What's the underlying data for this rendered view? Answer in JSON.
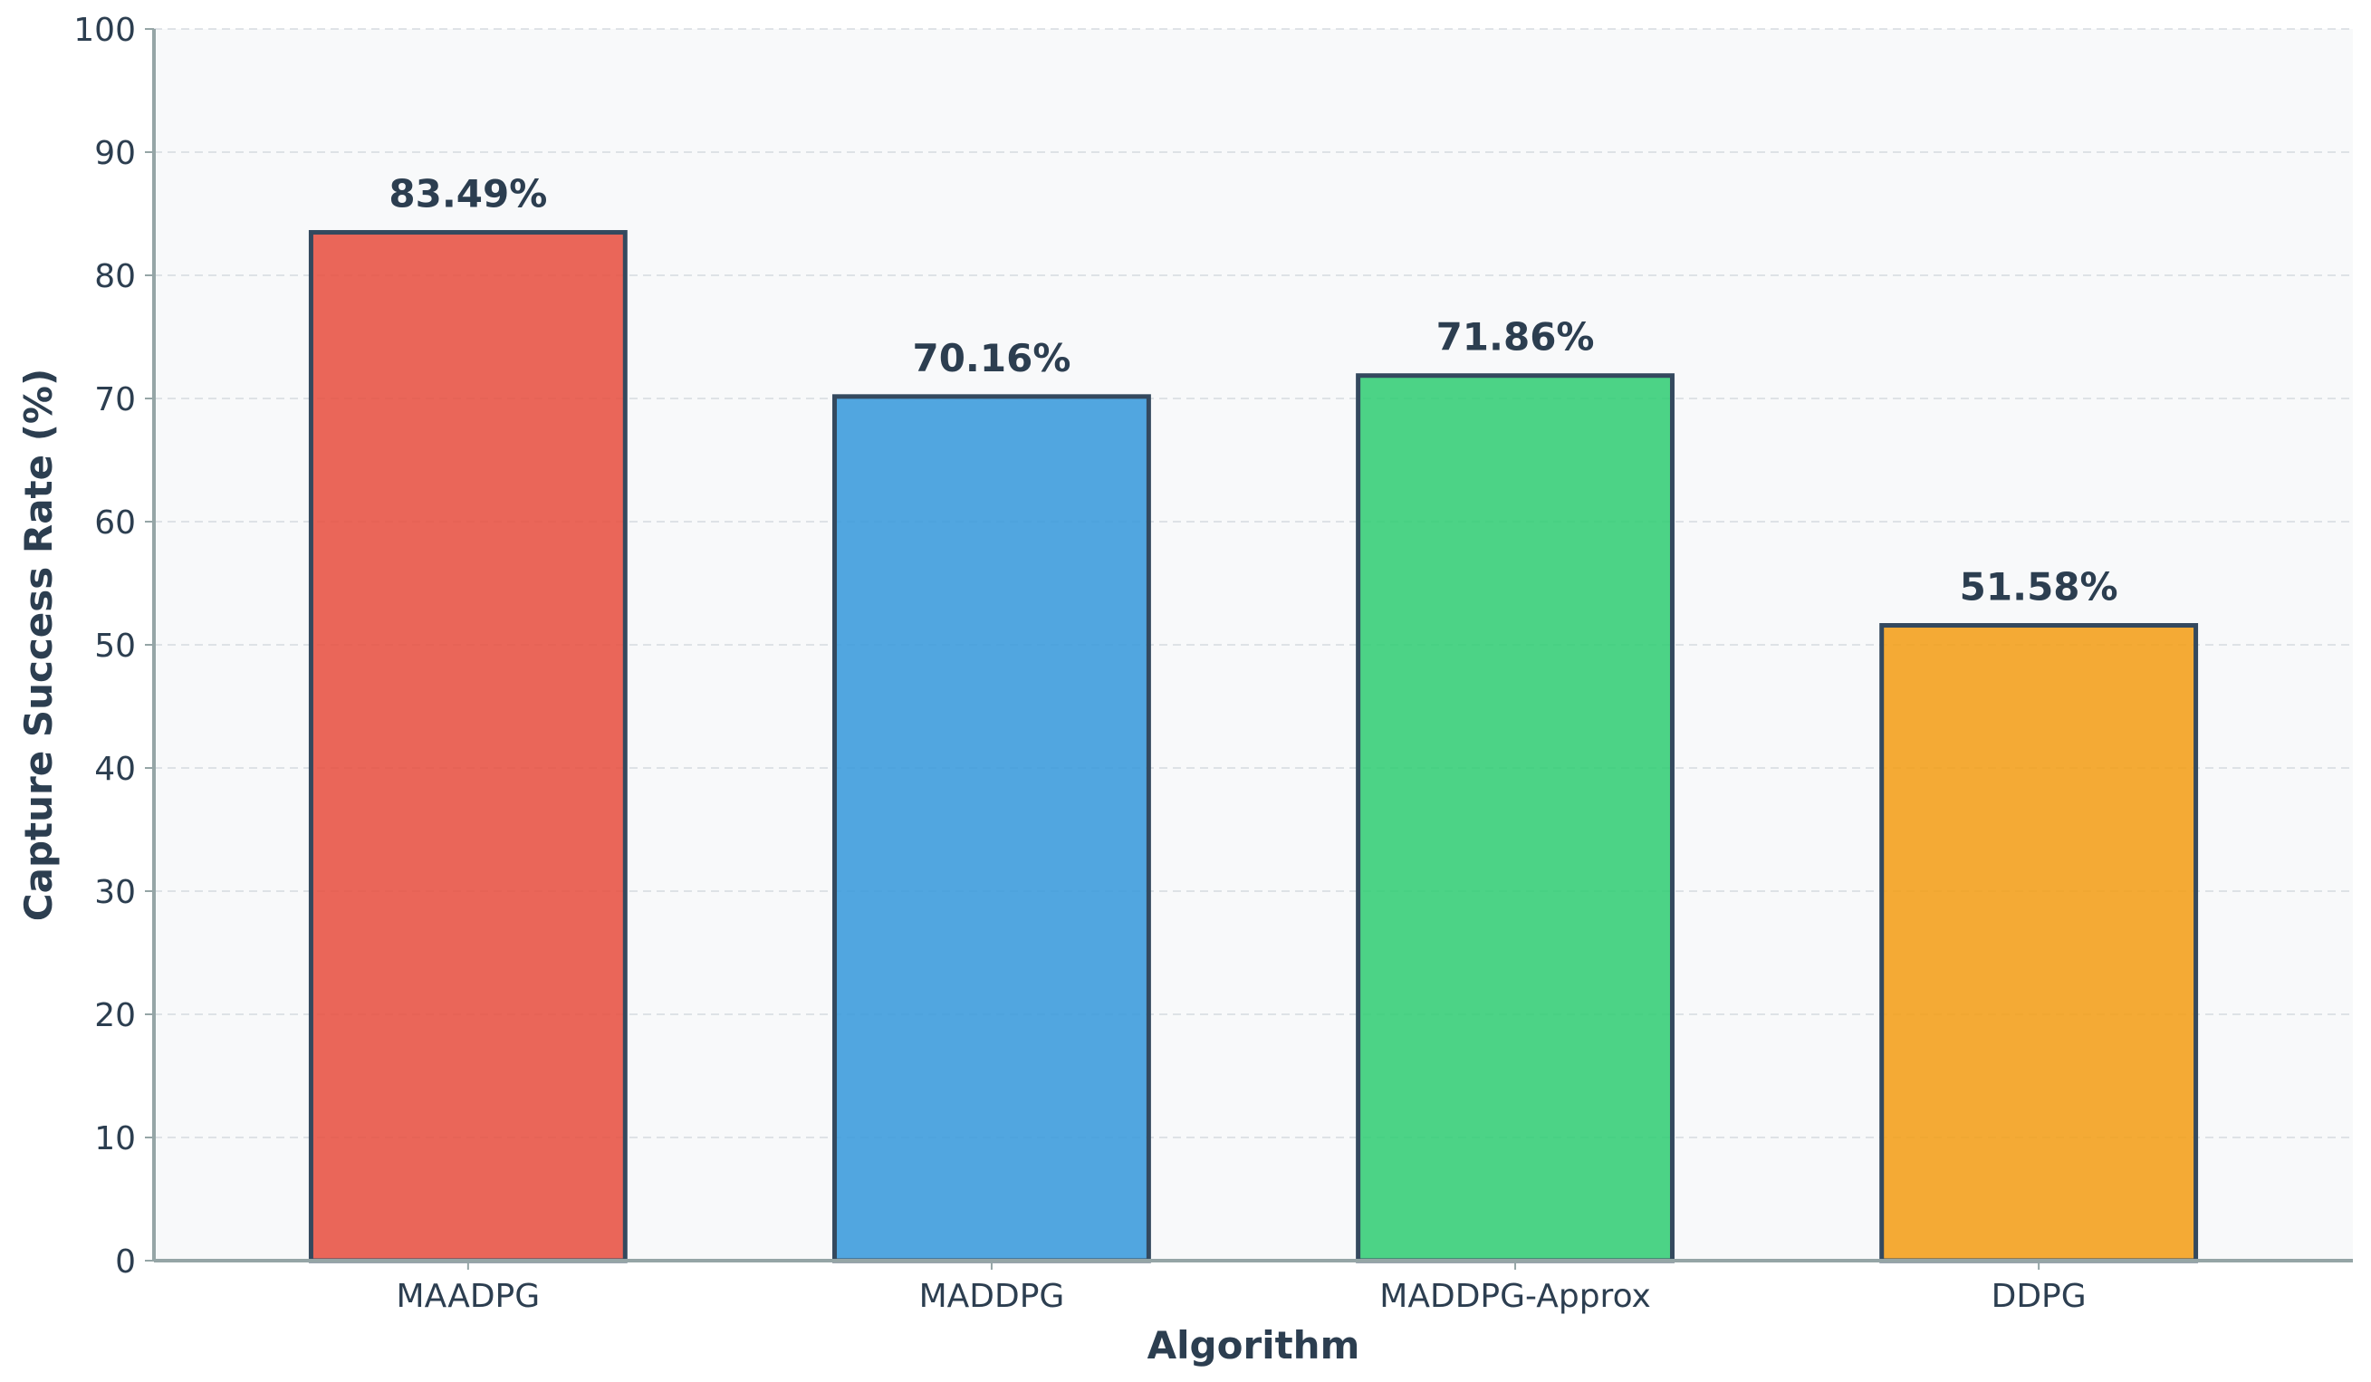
{
  "chart_data": {
    "type": "bar",
    "categories": [
      "MAADPG",
      "MADDPG",
      "MADDPG-Approx",
      "DDPG"
    ],
    "values": [
      83.49,
      70.16,
      71.86,
      51.58
    ],
    "value_labels": [
      "83.49%",
      "70.16%",
      "71.86%",
      "51.58%"
    ],
    "bar_colors": [
      "#e74c3c",
      "#3498db",
      "#2ecc71",
      "#f39c12"
    ],
    "bar_edge_color": "#34495e",
    "title": "",
    "xlabel": "Algorithm",
    "ylabel": "Capture Success Rate (%)",
    "ylim": [
      0,
      100
    ],
    "yticks": [
      0,
      10,
      20,
      30,
      40,
      50,
      60,
      70,
      80,
      90,
      100
    ],
    "ytick_labels": [
      "0",
      "10",
      "20",
      "30",
      "40",
      "50",
      "60",
      "70",
      "80",
      "90",
      "100"
    ],
    "grid": "y-dashed",
    "legend": "none",
    "plot_background": "#f8f9fa",
    "axis_color": "#95a5a6",
    "text_color": "#2c3e50"
  }
}
